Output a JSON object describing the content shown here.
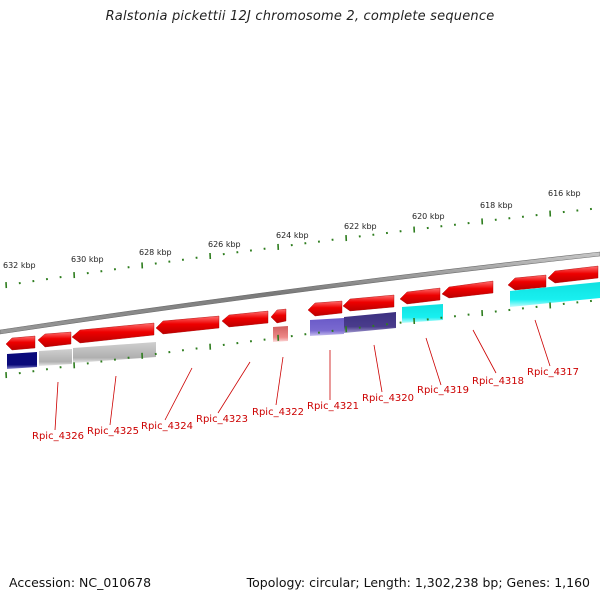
{
  "title": "Ralstonia pickettii 12J chromosome 2, complete sequence",
  "footer": {
    "accession": "Accession: NC_010678",
    "topology": "Topology: circular; Length: 1,302,238 bp; Genes: 1,160"
  },
  "ruler_labels": [
    "632 kbp",
    "630 kbp",
    "628 kbp",
    "626 kbp",
    "624 kbp",
    "622 kbp",
    "620 kbp",
    "618 kbp",
    "616 kbp"
  ],
  "genes": [
    "Rpic_4326",
    "Rpic_4325",
    "Rpic_4324",
    "Rpic_4323",
    "Rpic_4322",
    "Rpic_4321",
    "Rpic_4320",
    "Rpic_4319",
    "Rpic_4318",
    "Rpic_4317"
  ],
  "colors": {
    "strand_arrow": "#ee0000",
    "backbone": "#808080",
    "tick": "#2e7d1e",
    "label": "#cc0000",
    "cog_navy": "#0a0a7a",
    "cog_gray": "#b8b8b8",
    "cog_pink": "#ee8888",
    "cog_violet": "#7a6ad0",
    "cog_darkviolet": "#4a3c8c",
    "cog_cyan": "#18f0f0"
  }
}
